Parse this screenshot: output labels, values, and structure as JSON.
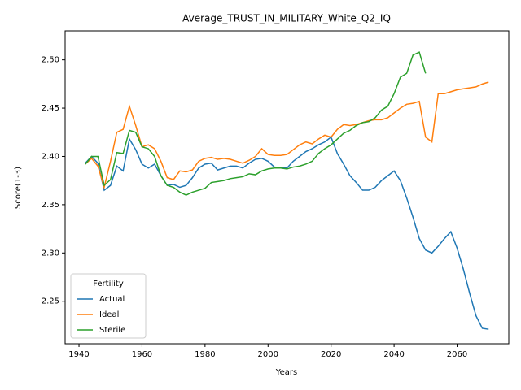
{
  "chart_data": {
    "type": "line",
    "title": "Average_TRUST_IN_MILITARY_White_Q2_IQ",
    "x_label": "Years",
    "y_label": "Score(1-3)",
    "legend_title": "Fertility",
    "legend_position": "lower left",
    "x": [
      1942,
      1944,
      1946,
      1948,
      1950,
      1952,
      1954,
      1956,
      1958,
      1960,
      1962,
      1964,
      1966,
      1968,
      1970,
      1972,
      1974,
      1976,
      1978,
      1980,
      1982,
      1984,
      1986,
      1988,
      1990,
      1992,
      1994,
      1996,
      1998,
      2000,
      2002,
      2004,
      2006,
      2008,
      2010,
      2012,
      2014,
      2016,
      2018,
      2020,
      2022,
      2024,
      2026,
      2028,
      2030,
      2032,
      2034,
      2036,
      2038,
      2040,
      2042,
      2044,
      2046,
      2048,
      2050,
      2052,
      2054,
      2056,
      2058,
      2060,
      2062,
      2064,
      2066,
      2068,
      2070
    ],
    "series": [
      {
        "name": "Actual",
        "color": "#1f77b4",
        "values": [
          2.393,
          2.4,
          2.393,
          2.365,
          2.37,
          2.39,
          2.385,
          2.418,
          2.407,
          2.392,
          2.388,
          2.392,
          2.38,
          2.37,
          2.371,
          2.368,
          2.37,
          2.378,
          2.388,
          2.392,
          2.393,
          2.386,
          2.388,
          2.39,
          2.39,
          2.388,
          2.393,
          2.397,
          2.398,
          2.395,
          2.389,
          2.388,
          2.388,
          2.395,
          2.4,
          2.405,
          2.408,
          2.412,
          2.415,
          2.42,
          2.403,
          2.392,
          2.38,
          2.373,
          2.365,
          2.365,
          2.368,
          2.375,
          2.38,
          2.385,
          2.375,
          2.357,
          2.337,
          2.315,
          2.303,
          2.3,
          2.307,
          2.315,
          2.322,
          2.305,
          2.283,
          2.258,
          2.235,
          2.222,
          2.221
        ]
      },
      {
        "name": "Ideal",
        "color": "#ff7f0e",
        "values": [
          2.392,
          2.398,
          2.39,
          2.368,
          2.395,
          2.425,
          2.428,
          2.452,
          2.432,
          2.41,
          2.412,
          2.408,
          2.395,
          2.378,
          2.376,
          2.385,
          2.384,
          2.386,
          2.395,
          2.398,
          2.399,
          2.397,
          2.398,
          2.397,
          2.395,
          2.393,
          2.396,
          2.4,
          2.408,
          2.402,
          2.401,
          2.401,
          2.402,
          2.407,
          2.412,
          2.415,
          2.413,
          2.418,
          2.422,
          2.42,
          2.428,
          2.433,
          2.432,
          2.433,
          2.435,
          2.437,
          2.438,
          2.438,
          2.44,
          2.445,
          2.45,
          2.454,
          2.455,
          2.457,
          2.42,
          2.415,
          2.465,
          2.465,
          2.467,
          2.469,
          2.47,
          2.471,
          2.472,
          2.475,
          2.477
        ]
      },
      {
        "name": "Sterile",
        "color": "#2ca02c",
        "values": [
          2.392,
          2.4,
          2.4,
          2.37,
          2.376,
          2.404,
          2.403,
          2.427,
          2.425,
          2.41,
          2.408,
          2.4,
          2.38,
          2.37,
          2.368,
          2.363,
          2.36,
          2.363,
          2.365,
          2.367,
          2.373,
          2.374,
          2.375,
          2.377,
          2.378,
          2.379,
          2.382,
          2.381,
          2.385,
          2.387,
          2.388,
          2.388,
          2.387,
          2.389,
          2.39,
          2.392,
          2.395,
          2.403,
          2.408,
          2.412,
          2.418,
          2.424,
          2.427,
          2.432,
          2.435,
          2.436,
          2.44,
          2.448,
          2.452,
          2.465,
          2.482,
          2.486,
          2.505,
          2.508,
          2.486,
          null,
          null,
          null,
          null,
          null,
          null,
          null,
          null,
          null,
          null
        ]
      }
    ],
    "xlim": [
      1935.6,
      2076.4
    ],
    "ylim": [
      2.206,
      2.53
    ],
    "xticks": [
      1940,
      1960,
      1980,
      2000,
      2020,
      2040,
      2060
    ],
    "yticks": [
      2.25,
      {
        "value": 2.3,
        "label": "2.30"
      },
      2.35,
      {
        "value": 2.4,
        "label": "2.40"
      },
      2.45,
      {
        "value": 2.5,
        "label": "2.50"
      }
    ]
  }
}
